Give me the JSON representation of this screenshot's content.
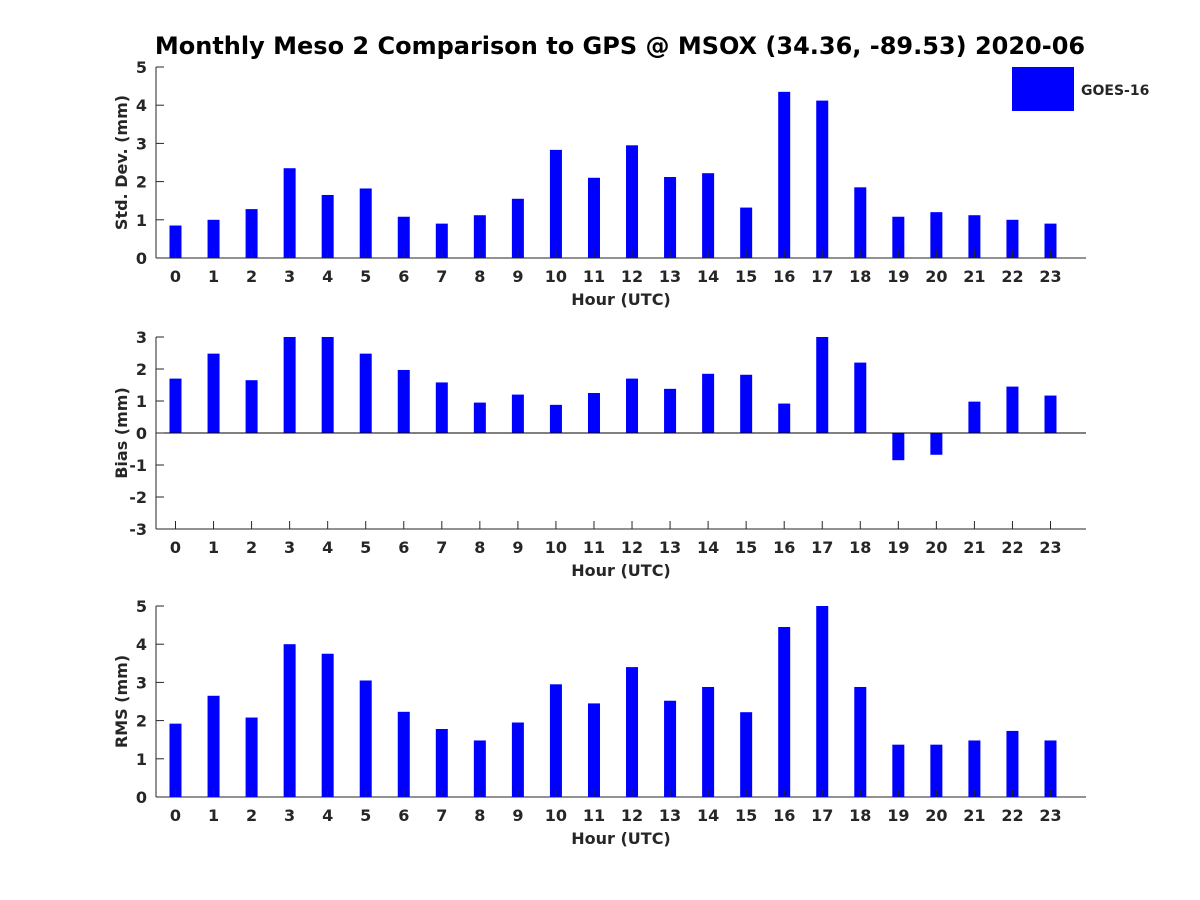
{
  "figure": {
    "title": "Monthly Meso 2 Comparison to GPS @ MSOX (34.36, -89.53) 2020-06"
  },
  "legend": {
    "label": "GOES-16",
    "color": "#0000ff",
    "placement": "top-right"
  },
  "chart_data": [
    {
      "type": "bar",
      "ylabel": "Std. Dev. (mm)",
      "xlabel": "Hour (UTC)",
      "ylim": [
        0,
        5
      ],
      "yticks": [
        0,
        1,
        2,
        3,
        4,
        5
      ],
      "categories": [
        "0",
        "1",
        "2",
        "3",
        "4",
        "5",
        "6",
        "7",
        "8",
        "9",
        "10",
        "11",
        "12",
        "13",
        "14",
        "15",
        "16",
        "17",
        "18",
        "19",
        "20",
        "21",
        "22",
        "23"
      ],
      "series": [
        {
          "name": "GOES-16",
          "color": "#0000ff",
          "values": [
            0.85,
            1.0,
            1.28,
            2.35,
            1.65,
            1.82,
            1.08,
            0.9,
            1.12,
            1.55,
            2.83,
            2.1,
            2.95,
            2.12,
            2.22,
            1.32,
            4.35,
            4.12,
            1.85,
            1.08,
            1.2,
            1.12,
            1.0,
            0.9
          ]
        }
      ]
    },
    {
      "type": "bar",
      "ylabel": "Bias (mm)",
      "xlabel": "Hour (UTC)",
      "ylim": [
        -3,
        3
      ],
      "yticks": [
        -3,
        -2,
        -1,
        0,
        1,
        2,
        3
      ],
      "categories": [
        "0",
        "1",
        "2",
        "3",
        "4",
        "5",
        "6",
        "7",
        "8",
        "9",
        "10",
        "11",
        "12",
        "13",
        "14",
        "15",
        "16",
        "17",
        "18",
        "19",
        "20",
        "21",
        "22",
        "23"
      ],
      "series": [
        {
          "name": "GOES-16",
          "color": "#0000ff",
          "values": [
            1.7,
            2.48,
            1.65,
            3.0,
            3.0,
            2.48,
            1.97,
            1.58,
            0.95,
            1.2,
            0.88,
            1.25,
            1.7,
            1.38,
            1.85,
            1.82,
            0.92,
            3.0,
            2.2,
            -0.85,
            -0.68,
            0.98,
            1.45,
            1.17
          ]
        }
      ]
    },
    {
      "type": "bar",
      "ylabel": "RMS (mm)",
      "xlabel": "Hour (UTC)",
      "ylim": [
        0,
        5
      ],
      "yticks": [
        0,
        1,
        2,
        3,
        4,
        5
      ],
      "categories": [
        "0",
        "1",
        "2",
        "3",
        "4",
        "5",
        "6",
        "7",
        "8",
        "9",
        "10",
        "11",
        "12",
        "13",
        "14",
        "15",
        "16",
        "17",
        "18",
        "19",
        "20",
        "21",
        "22",
        "23"
      ],
      "series": [
        {
          "name": "GOES-16",
          "color": "#0000ff",
          "values": [
            1.92,
            2.65,
            2.08,
            4.0,
            3.75,
            3.05,
            2.23,
            1.78,
            1.48,
            1.95,
            2.95,
            2.45,
            3.4,
            2.52,
            2.88,
            2.22,
            4.45,
            5.0,
            2.88,
            1.37,
            1.37,
            1.48,
            1.73,
            1.48
          ]
        }
      ]
    }
  ]
}
